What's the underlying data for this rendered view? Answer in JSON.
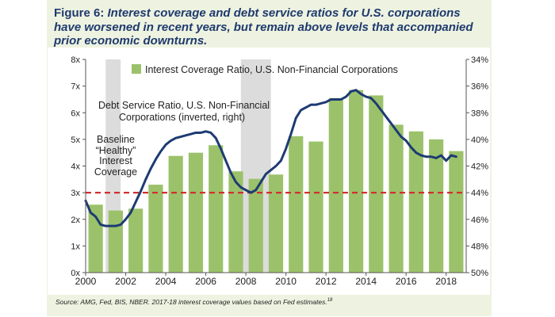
{
  "figure": {
    "title_prefix": "Figure 6: ",
    "title_italic": "Interest coverage and debt service ratios for U.S. corporations have worsened in recent years, but remain above levels that accompanied prior economic downturns.",
    "source_text": "Source: AMG, Fed, BIS, NBER. 2017-18 interest coverage values based on Fed estimates.",
    "source_footnote": "18"
  },
  "colors": {
    "bar": "#9bc26a",
    "line": "#1d3b73",
    "baseline": "#d32f2f",
    "recession": "#dcdcdc",
    "title": "#1f3a6e"
  },
  "chart_data": {
    "type": "bar",
    "x_tick_labels": [
      "2000",
      "2002",
      "2004",
      "2006",
      "2008",
      "2010",
      "2012",
      "2014",
      "2016",
      "2018"
    ],
    "left_axis": {
      "ylim": [
        0,
        8
      ],
      "tick_labels": [
        "0x",
        "1x",
        "2x",
        "3x",
        "4x",
        "5x",
        "6x",
        "7x",
        "8x"
      ]
    },
    "right_axis": {
      "ylim": [
        50,
        34
      ],
      "inverted": true,
      "tick_labels": [
        "50%",
        "48%",
        "46%",
        "44%",
        "42%",
        "40%",
        "38%",
        "36%",
        "34%"
      ]
    },
    "legend": {
      "label": "Interest Coverage Ratio, U.S. Non-Financial Corporations",
      "position": "top"
    },
    "series": [
      {
        "name": "Interest Coverage Ratio, U.S. Non-Financial Corporations",
        "type": "bar",
        "axis": "left",
        "x": [
          2000,
          2001,
          2002,
          2003,
          2004,
          2005,
          2006,
          2007,
          2008,
          2009,
          2010,
          2011,
          2012,
          2013,
          2014,
          2015,
          2016,
          2017,
          2018
        ],
        "values": [
          2.55,
          2.33,
          2.4,
          3.3,
          4.38,
          4.5,
          4.78,
          3.8,
          3.52,
          3.68,
          5.12,
          4.92,
          6.55,
          6.85,
          6.65,
          5.55,
          5.3,
          5.0,
          4.56
        ]
      },
      {
        "name": "Debt Service Ratio, U.S. Non-Financial Corporations (inverted, right)",
        "type": "line",
        "axis": "right",
        "x": [
          2000.0,
          2000.25,
          2000.5,
          2000.75,
          2001.0,
          2001.25,
          2001.5,
          2001.75,
          2002.0,
          2002.25,
          2002.5,
          2002.75,
          2003.0,
          2003.25,
          2003.5,
          2003.75,
          2004.0,
          2004.25,
          2004.5,
          2004.75,
          2005.0,
          2005.25,
          2005.5,
          2005.75,
          2006.0,
          2006.25,
          2006.5,
          2006.75,
          2007.0,
          2007.25,
          2007.5,
          2007.75,
          2008.0,
          2008.25,
          2008.5,
          2008.75,
          2009.0,
          2009.25,
          2009.5,
          2009.75,
          2010.0,
          2010.25,
          2010.5,
          2010.75,
          2011.0,
          2011.25,
          2011.5,
          2011.75,
          2012.0,
          2012.25,
          2012.5,
          2012.75,
          2013.0,
          2013.25,
          2013.5,
          2013.75,
          2014.0,
          2014.25,
          2014.5,
          2014.75,
          2015.0,
          2015.25,
          2015.5,
          2015.75,
          2016.0,
          2016.25,
          2016.5,
          2016.75,
          2017.0,
          2017.25,
          2017.5,
          2017.75,
          2018.0,
          2018.25,
          2018.5
        ],
        "values": [
          44.6,
          45.5,
          45.8,
          46.4,
          46.5,
          46.5,
          46.5,
          46.4,
          46.0,
          45.5,
          44.7,
          43.9,
          43.0,
          42.2,
          41.5,
          40.9,
          40.4,
          40.1,
          39.9,
          39.8,
          39.7,
          39.6,
          39.5,
          39.5,
          39.4,
          39.5,
          39.9,
          40.7,
          41.6,
          42.5,
          43.2,
          43.6,
          43.8,
          44.0,
          43.8,
          43.2,
          42.6,
          42.3,
          42.0,
          41.6,
          40.7,
          39.6,
          38.4,
          37.8,
          37.6,
          37.4,
          37.4,
          37.3,
          37.2,
          37.0,
          37.0,
          37.0,
          36.8,
          36.4,
          36.3,
          36.6,
          36.8,
          36.9,
          37.3,
          37.8,
          38.3,
          38.8,
          39.3,
          39.8,
          40.1,
          40.6,
          41.0,
          41.2,
          41.3,
          41.3,
          41.4,
          41.2,
          41.6,
          41.2,
          41.3
        ]
      }
    ],
    "reference_line": {
      "axis": "left",
      "value": 3.0,
      "style": "dashed"
    },
    "recession_shading": [
      [
        2001.0,
        2001.75
      ],
      [
        2007.75,
        2009.25
      ]
    ],
    "annotations": [
      {
        "text_lines": [
          "Debt Service Ratio, U.S. Non-Financial",
          "Corporations (inverted, right)"
        ]
      },
      {
        "text_lines": [
          "Baseline",
          "“Healthy”",
          "Interest",
          "Coverage"
        ]
      }
    ],
    "grid": false
  }
}
